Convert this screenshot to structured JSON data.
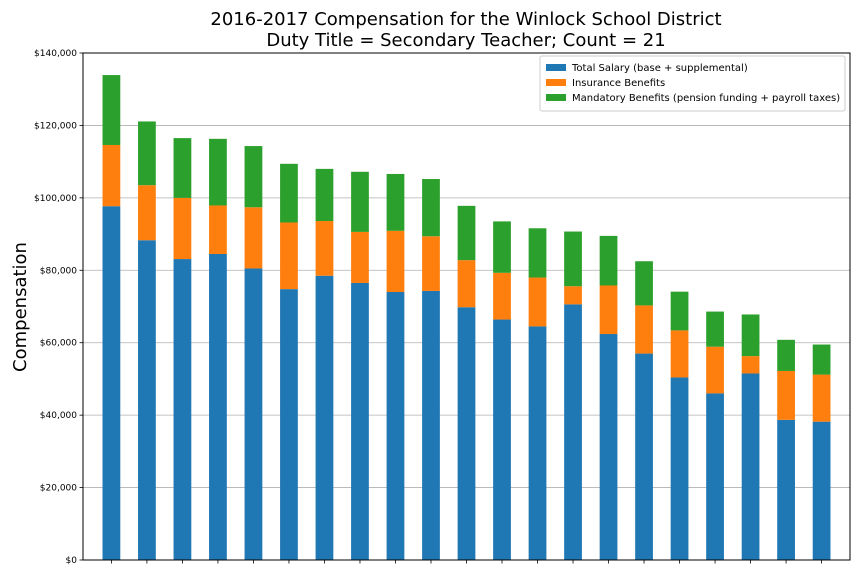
{
  "chart_data": {
    "type": "bar",
    "stacked": true,
    "title": "2016-2017 Compensation for the Winlock School District",
    "subtitle": "Duty Title = Secondary Teacher; Count = 21",
    "xlabel": "",
    "ylabel": "Compensation",
    "ylim": [
      0,
      140000
    ],
    "yticks": [
      0,
      20000,
      40000,
      60000,
      80000,
      100000,
      120000,
      140000
    ],
    "ytick_labels": [
      "$0",
      "$20,000",
      "$40,000",
      "$60,000",
      "$80,000",
      "$100,000",
      "$120,000",
      "$140,000"
    ],
    "grid": "horizontal",
    "legend_position": "top-right",
    "series": [
      {
        "name": "Total Salary (base + supplemental)",
        "color": "#1f77b4",
        "values": [
          97700,
          88300,
          83100,
          84500,
          80500,
          74800,
          78500,
          76500,
          74000,
          74300,
          69800,
          66400,
          64500,
          70600,
          62400,
          57000,
          50400,
          46000,
          51500,
          38700,
          38200
        ]
      },
      {
        "name": "Insurance Benefits",
        "color": "#ff7f0e",
        "values": [
          16900,
          15200,
          16900,
          13400,
          16900,
          18400,
          15100,
          14100,
          16900,
          15100,
          13000,
          12900,
          13500,
          5000,
          13400,
          13300,
          13000,
          12900,
          4800,
          13500,
          13000
        ]
      },
      {
        "name": "Mandatory Benefits (pension funding + payroll taxes)",
        "color": "#2ca02c",
        "values": [
          19300,
          17600,
          16500,
          18400,
          16900,
          16200,
          14400,
          16600,
          15700,
          15800,
          15000,
          14200,
          13600,
          15100,
          13700,
          12200,
          10700,
          9700,
          11500,
          8600,
          8300
        ]
      }
    ]
  }
}
